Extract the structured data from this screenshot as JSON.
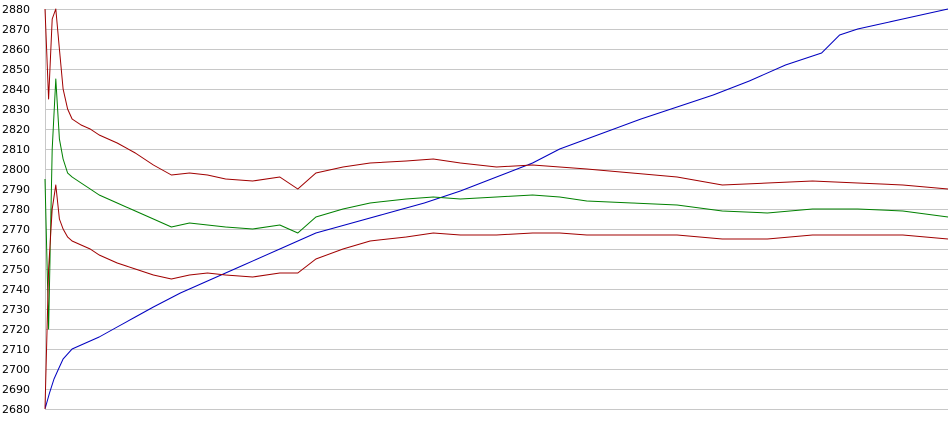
{
  "chart_data": {
    "type": "line",
    "title": "",
    "xlabel": "",
    "ylabel": "",
    "ylim": [
      2680,
      2880
    ],
    "xlim": [
      0,
      1000
    ],
    "yticks": [
      2680,
      2690,
      2700,
      2710,
      2720,
      2730,
      2740,
      2750,
      2760,
      2770,
      2780,
      2790,
      2800,
      2810,
      2820,
      2830,
      2840,
      2850,
      2860,
      2870,
      2880
    ],
    "grid": true,
    "legend": "none",
    "series": [
      {
        "color": "#0000c0",
        "x": [
          0,
          5,
          10,
          15,
          20,
          30,
          40,
          60,
          80,
          100,
          120,
          150,
          180,
          220,
          260,
          300,
          340,
          380,
          420,
          460,
          500,
          540,
          570,
          600,
          630,
          660,
          700,
          740,
          780,
          820,
          860,
          880,
          900,
          920,
          950,
          980,
          1000
        ],
        "y": [
          2680,
          2688,
          2695,
          2700,
          2705,
          2710,
          2712,
          2716,
          2721,
          2726,
          2731,
          2738,
          2744,
          2752,
          2760,
          2768,
          2773,
          2778,
          2783,
          2789,
          2796,
          2803,
          2810,
          2815,
          2820,
          2825,
          2831,
          2837,
          2844,
          2852,
          2858,
          2867,
          2870,
          2872,
          2875,
          2878,
          2880
        ]
      },
      {
        "color": "#a00000",
        "x": [
          0,
          4,
          8,
          12,
          16,
          20,
          25,
          30,
          40,
          50,
          60,
          80,
          100,
          120,
          140,
          160,
          180,
          200,
          230,
          260,
          280,
          300,
          330,
          360,
          400,
          430,
          460,
          500,
          540,
          570,
          600,
          650,
          700,
          750,
          800,
          850,
          900,
          950,
          1000
        ],
        "y": [
          2880,
          2835,
          2875,
          2880,
          2860,
          2840,
          2830,
          2825,
          2822,
          2820,
          2817,
          2813,
          2808,
          2802,
          2797,
          2798,
          2797,
          2795,
          2794,
          2796,
          2790,
          2798,
          2801,
          2803,
          2804,
          2805,
          2803,
          2801,
          2802,
          2801,
          2800,
          2798,
          2796,
          2792,
          2793,
          2794,
          2793,
          2792,
          2790
        ]
      },
      {
        "color": "#008000",
        "x": [
          0,
          4,
          8,
          12,
          16,
          20,
          25,
          30,
          40,
          50,
          60,
          80,
          100,
          120,
          140,
          160,
          180,
          200,
          230,
          260,
          280,
          300,
          330,
          360,
          400,
          430,
          460,
          500,
          540,
          570,
          600,
          650,
          700,
          750,
          800,
          850,
          900,
          950,
          1000
        ],
        "y": [
          2795,
          2720,
          2810,
          2845,
          2815,
          2805,
          2798,
          2796,
          2793,
          2790,
          2787,
          2783,
          2779,
          2775,
          2771,
          2773,
          2772,
          2771,
          2770,
          2772,
          2768,
          2776,
          2780,
          2783,
          2785,
          2786,
          2785,
          2786,
          2787,
          2786,
          2784,
          2783,
          2782,
          2779,
          2778,
          2780,
          2780,
          2779,
          2776
        ]
      },
      {
        "color": "#a00000",
        "x": [
          0,
          4,
          8,
          12,
          16,
          20,
          25,
          30,
          40,
          50,
          60,
          80,
          100,
          120,
          140,
          160,
          180,
          200,
          230,
          260,
          280,
          300,
          330,
          360,
          400,
          430,
          460,
          500,
          540,
          570,
          600,
          650,
          700,
          750,
          800,
          850,
          900,
          950,
          1000
        ],
        "y": [
          2680,
          2750,
          2780,
          2792,
          2775,
          2770,
          2766,
          2764,
          2762,
          2760,
          2757,
          2753,
          2750,
          2747,
          2745,
          2747,
          2748,
          2747,
          2746,
          2748,
          2748,
          2755,
          2760,
          2764,
          2766,
          2768,
          2767,
          2767,
          2768,
          2768,
          2767,
          2767,
          2767,
          2765,
          2765,
          2767,
          2767,
          2767,
          2765
        ]
      }
    ]
  }
}
